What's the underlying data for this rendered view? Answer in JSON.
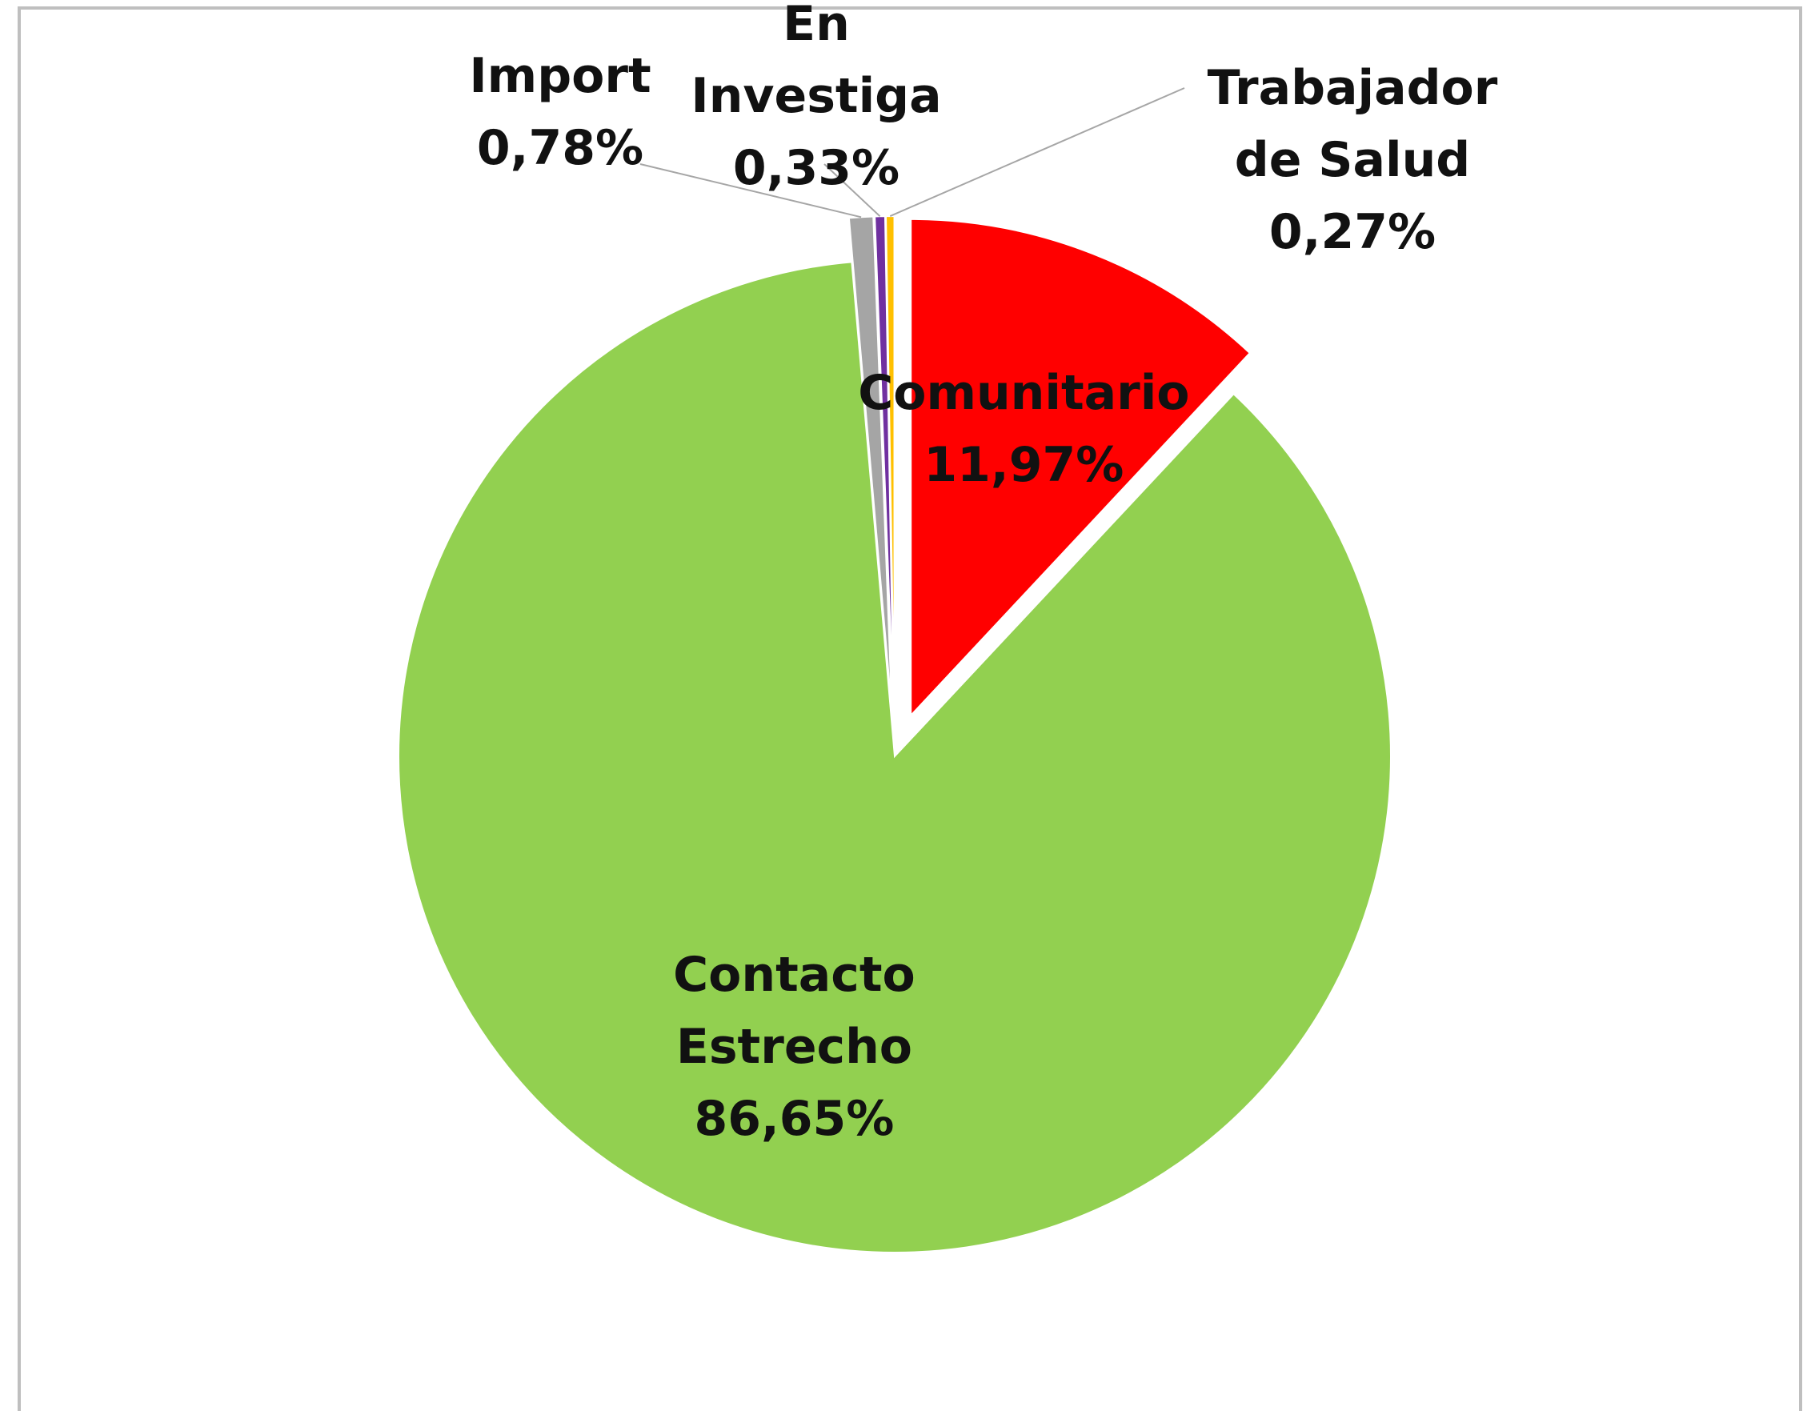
{
  "chart_data": {
    "type": "pie",
    "categories": [
      "Comunitario",
      "Contacto Estrecho",
      "Import",
      "En Investiga",
      "Trabajador de Salud"
    ],
    "values": [
      11.97,
      86.65,
      0.78,
      0.33,
      0.27
    ],
    "value_labels": [
      "11,97%",
      "86,65%",
      "0,78%",
      "0,33%",
      "0,27%"
    ],
    "colors": [
      "#ff0000",
      "#92d050",
      "#a5a5a5",
      "#7030a0",
      "#ffc000"
    ]
  }
}
